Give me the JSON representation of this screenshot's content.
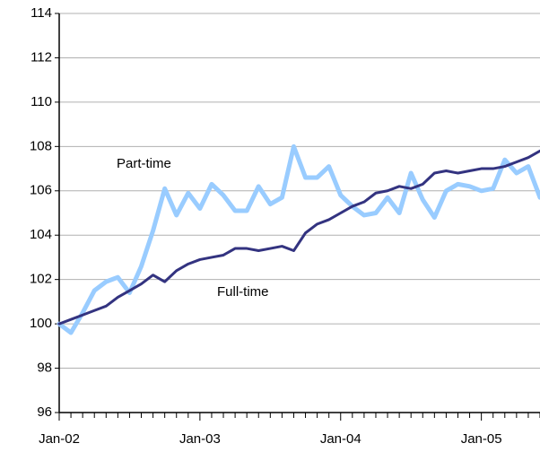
{
  "chart_data": {
    "type": "line",
    "categories": [
      "Jan-02",
      null,
      null,
      null,
      null,
      null,
      null,
      null,
      null,
      null,
      null,
      null,
      "Jan-03",
      null,
      null,
      null,
      null,
      null,
      null,
      null,
      null,
      null,
      null,
      null,
      "Jan-04",
      null,
      null,
      null,
      null,
      null,
      null,
      null,
      null,
      null,
      null,
      null,
      "Jan-05",
      null,
      null,
      null,
      null,
      null
    ],
    "series": [
      {
        "name": "Full-time",
        "color": "#333380",
        "values": [
          100.0,
          100.2,
          100.4,
          100.6,
          100.8,
          101.2,
          101.5,
          101.8,
          102.2,
          101.9,
          102.4,
          102.7,
          102.9,
          103.0,
          103.1,
          103.4,
          103.4,
          103.3,
          103.4,
          103.5,
          103.3,
          104.1,
          104.5,
          104.7,
          105.0,
          105.3,
          105.5,
          105.9,
          106.0,
          106.2,
          106.1,
          106.3,
          106.8,
          106.9,
          106.8,
          106.9,
          107.0,
          107.0,
          107.1,
          107.3,
          107.5,
          107.8
        ]
      },
      {
        "name": "Part-time",
        "color": "#99ccff",
        "values": [
          100.0,
          99.6,
          100.5,
          101.5,
          101.9,
          102.1,
          101.4,
          102.6,
          104.2,
          106.1,
          104.9,
          105.9,
          105.2,
          106.3,
          105.8,
          105.1,
          105.1,
          106.2,
          105.4,
          105.7,
          108.0,
          106.6,
          106.6,
          107.1,
          105.8,
          105.3,
          104.9,
          105.0,
          105.7,
          105.0,
          106.8,
          105.6,
          104.8,
          106.0,
          106.3,
          106.2,
          106.0,
          106.1,
          107.4,
          106.8,
          107.1,
          105.7
        ]
      }
    ],
    "annotations": [
      "Part-time",
      "Full-time"
    ],
    "ylim": [
      96,
      114
    ],
    "yticks": [
      96,
      98,
      100,
      102,
      104,
      106,
      108,
      110,
      112,
      114
    ],
    "grid": true
  }
}
